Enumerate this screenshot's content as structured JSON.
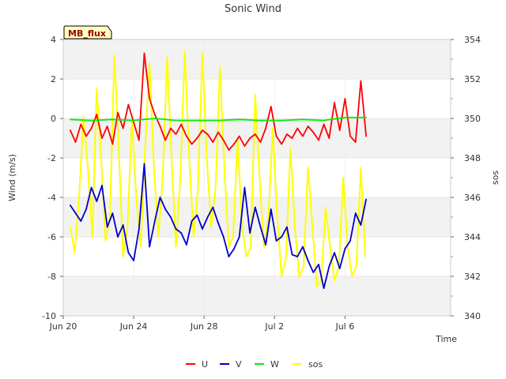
{
  "chart_data": {
    "type": "line",
    "title": "Sonic Wind",
    "badge": "MB_flux",
    "xlabel": "Time",
    "ylabel": "Wind (m/s)",
    "y2label": "sos",
    "xlim": [
      0,
      22
    ],
    "ylim": [
      -10,
      4
    ],
    "y2lim": [
      340,
      354
    ],
    "x_ticks": [
      {
        "x": 0,
        "label": "Jun 20"
      },
      {
        "x": 4,
        "label": "Jun 24"
      },
      {
        "x": 8,
        "label": "Jun 28"
      },
      {
        "x": 12,
        "label": "Jul 2"
      },
      {
        "x": 16,
        "label": "Jul 6"
      }
    ],
    "y_ticks": [
      -10,
      -8,
      -6,
      -4,
      -2,
      0,
      2,
      4
    ],
    "y2_ticks": [
      340,
      342,
      344,
      346,
      348,
      350,
      352,
      354
    ],
    "bands": [
      [
        2,
        4
      ],
      [
        -2,
        0
      ],
      [
        -6,
        -4
      ],
      [
        -10,
        -8
      ]
    ],
    "series": [
      {
        "name": "U",
        "axis": "left",
        "color": "#ff0000",
        "x": [
          0.4,
          0.7,
          1.0,
          1.3,
          1.6,
          1.9,
          2.2,
          2.5,
          2.8,
          3.1,
          3.4,
          3.7,
          4.0,
          4.3,
          4.6,
          4.9,
          5.2,
          5.5,
          5.8,
          6.1,
          6.4,
          6.7,
          7.0,
          7.3,
          7.6,
          7.9,
          8.2,
          8.5,
          8.8,
          9.1,
          9.4,
          9.7,
          10.0,
          10.3,
          10.6,
          10.9,
          11.2,
          11.5,
          11.8,
          12.1,
          12.4,
          12.7,
          13.0,
          13.3,
          13.6,
          13.9,
          14.2,
          14.5,
          14.8,
          15.1,
          15.4,
          15.7,
          16.0,
          16.3,
          16.6,
          16.9,
          17.2
        ],
        "values": [
          -0.6,
          -1.2,
          -0.3,
          -0.9,
          -0.5,
          0.2,
          -1.0,
          -0.4,
          -1.3,
          0.3,
          -0.5,
          0.7,
          -0.2,
          -1.1,
          3.3,
          1.0,
          0.2,
          -0.4,
          -1.1,
          -0.5,
          -0.8,
          -0.3,
          -0.9,
          -1.3,
          -1.0,
          -0.6,
          -0.8,
          -1.2,
          -0.7,
          -1.1,
          -1.6,
          -1.3,
          -0.9,
          -1.4,
          -1.0,
          -0.8,
          -1.2,
          -0.5,
          0.6,
          -0.9,
          -1.3,
          -0.8,
          -1.0,
          -0.5,
          -0.9,
          -0.4,
          -0.7,
          -1.1,
          -0.3,
          -1.0,
          0.8,
          -0.6,
          1.0,
          -0.9,
          -1.2,
          1.9,
          -0.9
        ]
      },
      {
        "name": "V",
        "axis": "left",
        "color": "#0000cc",
        "x": [
          0.4,
          0.7,
          1.0,
          1.3,
          1.6,
          1.9,
          2.2,
          2.5,
          2.8,
          3.1,
          3.4,
          3.7,
          4.0,
          4.3,
          4.6,
          4.9,
          5.2,
          5.5,
          5.8,
          6.1,
          6.4,
          6.7,
          7.0,
          7.3,
          7.6,
          7.9,
          8.2,
          8.5,
          8.8,
          9.1,
          9.4,
          9.7,
          10.0,
          10.3,
          10.6,
          10.9,
          11.2,
          11.5,
          11.8,
          12.1,
          12.4,
          12.7,
          13.0,
          13.3,
          13.6,
          13.9,
          14.2,
          14.5,
          14.8,
          15.1,
          15.4,
          15.7,
          16.0,
          16.3,
          16.6,
          16.9,
          17.2
        ],
        "values": [
          -4.4,
          -4.8,
          -5.2,
          -4.6,
          -3.5,
          -4.2,
          -3.4,
          -5.5,
          -4.8,
          -6.0,
          -5.4,
          -6.8,
          -7.2,
          -5.6,
          -2.3,
          -6.5,
          -5.2,
          -4.0,
          -4.6,
          -5.0,
          -5.6,
          -5.8,
          -6.4,
          -5.2,
          -4.9,
          -5.6,
          -5.0,
          -4.5,
          -5.3,
          -6.0,
          -7.0,
          -6.6,
          -6.0,
          -3.5,
          -5.8,
          -4.5,
          -5.5,
          -6.4,
          -4.6,
          -6.2,
          -6.0,
          -5.5,
          -6.9,
          -7.0,
          -6.5,
          -7.2,
          -7.8,
          -7.4,
          -8.6,
          -7.5,
          -6.8,
          -7.6,
          -6.6,
          -6.2,
          -4.8,
          -5.4,
          -4.1
        ]
      },
      {
        "name": "W",
        "axis": "left",
        "color": "#00ee00",
        "x": [
          0.4,
          1.6,
          2.8,
          4.0,
          5.2,
          6.4,
          7.6,
          8.8,
          10.0,
          11.2,
          12.4,
          13.6,
          14.8,
          16.0,
          17.2
        ],
        "values": [
          -0.05,
          -0.1,
          -0.05,
          -0.1,
          0.0,
          -0.1,
          -0.1,
          -0.1,
          -0.05,
          -0.1,
          -0.1,
          -0.05,
          -0.1,
          0.05,
          0.05
        ]
      },
      {
        "name": "sos",
        "axis": "right",
        "color": "#ffff00",
        "x": [
          0.4,
          0.65,
          0.9,
          1.15,
          1.4,
          1.65,
          1.9,
          2.15,
          2.4,
          2.65,
          2.9,
          3.15,
          3.4,
          3.65,
          3.9,
          4.15,
          4.4,
          4.65,
          4.9,
          5.15,
          5.4,
          5.65,
          5.9,
          6.15,
          6.4,
          6.65,
          6.9,
          7.15,
          7.4,
          7.65,
          7.9,
          8.15,
          8.4,
          8.65,
          8.9,
          9.15,
          9.4,
          9.65,
          9.9,
          10.15,
          10.4,
          10.65,
          10.9,
          11.15,
          11.4,
          11.65,
          11.9,
          12.15,
          12.4,
          12.65,
          12.9,
          13.15,
          13.4,
          13.65,
          13.9,
          14.15,
          14.4,
          14.65,
          14.9,
          15.15,
          15.4,
          15.65,
          15.9,
          16.15,
          16.4,
          16.65,
          16.9,
          17.15
        ],
        "values": [
          344.5,
          343.2,
          346.0,
          350.1,
          347.5,
          344.0,
          351.5,
          348.0,
          343.8,
          345.0,
          353.2,
          348.5,
          343.0,
          344.5,
          350.0,
          346.0,
          343.5,
          348.5,
          352.8,
          347.5,
          344.0,
          347.0,
          353.1,
          348.0,
          343.5,
          347.0,
          353.4,
          348.0,
          344.0,
          346.5,
          353.3,
          348.0,
          344.5,
          346.5,
          352.6,
          347.5,
          343.5,
          344.0,
          349.0,
          344.5,
          343.0,
          343.5,
          351.2,
          347.0,
          343.5,
          345.0,
          349.5,
          345.0,
          342.0,
          343.0,
          348.5,
          344.5,
          342.0,
          342.5,
          347.5,
          344.5,
          341.5,
          341.8,
          345.5,
          343.5,
          341.8,
          342.5,
          347.0,
          343.5,
          342.0,
          342.5,
          347.5,
          343.0
        ]
      }
    ]
  },
  "legend": {
    "items": [
      {
        "label": "U",
        "color": "#ff0000"
      },
      {
        "label": "V",
        "color": "#0000cc"
      },
      {
        "label": "W",
        "color": "#00ee00"
      },
      {
        "label": "sos",
        "color": "#ffff00"
      }
    ]
  }
}
